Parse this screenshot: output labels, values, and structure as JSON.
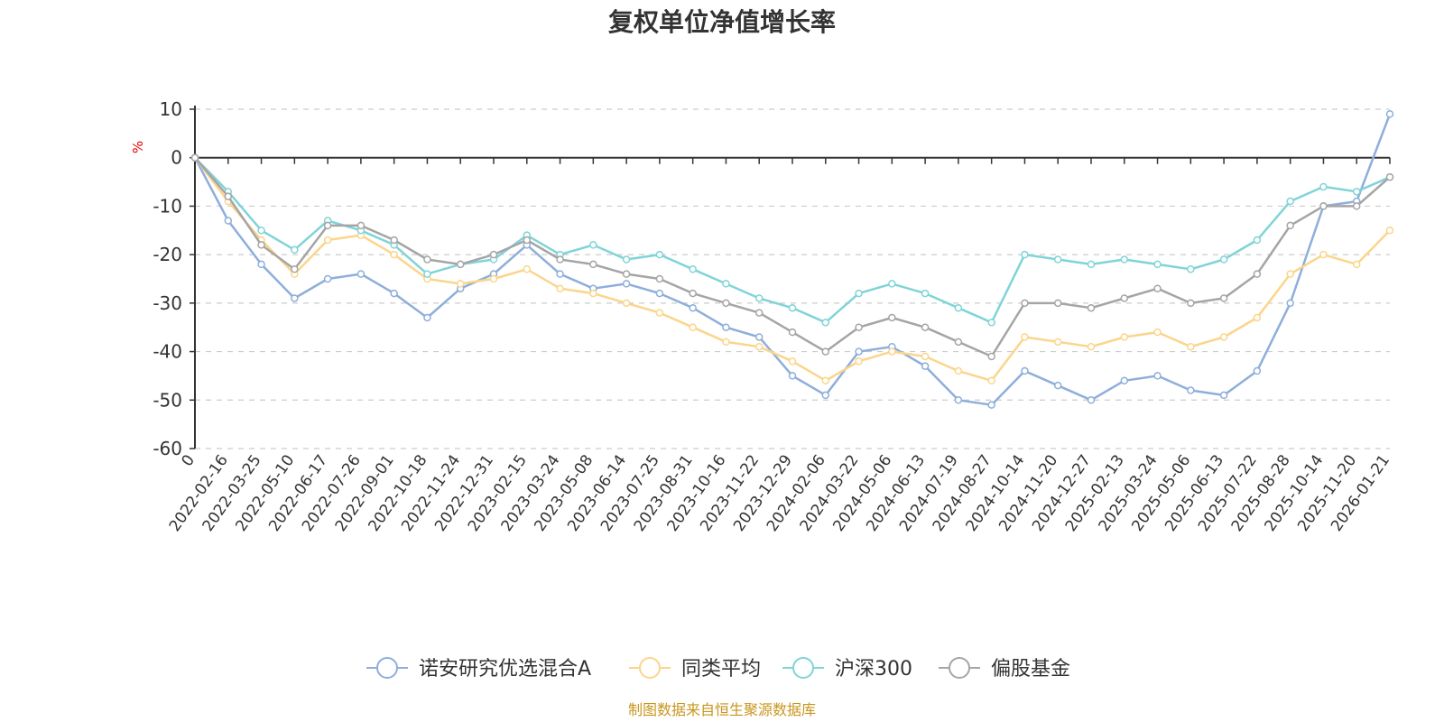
{
  "title": "复权单位净值增长率",
  "source": "制图数据来自恒生聚源数据库",
  "chart_data": {
    "type": "line",
    "title": "复权单位净值增长率",
    "ylabel": "%",
    "ylim": [
      -60,
      10
    ],
    "yticks": [
      10,
      0,
      -10,
      -20,
      -30,
      -40,
      -50,
      -60
    ],
    "grid": true,
    "legend_position": "bottom",
    "x": [
      "0",
      "2022-02-16",
      "2022-03-25",
      "2022-05-10",
      "2022-06-17",
      "2022-07-26",
      "2022-09-01",
      "2022-10-18",
      "2022-11-24",
      "2022-12-31",
      "2023-02-15",
      "2023-03-24",
      "2023-05-08",
      "2023-06-14",
      "2023-07-25",
      "2023-08-31",
      "2023-10-16",
      "2023-11-22",
      "2023-12-29",
      "2024-02-06",
      "2024-03-22",
      "2024-05-06",
      "2024-06-13",
      "2024-07-19",
      "2024-08-27",
      "2024-10-14",
      "2024-11-20",
      "2024-12-27",
      "2025-02-13",
      "2025-03-24",
      "2025-05-06",
      "2025-06-13",
      "2025-07-22",
      "2025-08-28",
      "2025-10-14",
      "2025-11-20",
      "2026-01-21"
    ],
    "series": [
      {
        "name": "诺安研究优选混合A",
        "color": "#8eaedb",
        "values": [
          0,
          -13,
          -22,
          -29,
          -25,
          -24,
          -28,
          -33,
          -27,
          -24,
          -18,
          -24,
          -27,
          -26,
          -28,
          -31,
          -35,
          -37,
          -45,
          -49,
          -40,
          -39,
          -43,
          -50,
          -51,
          -44,
          -47,
          -50,
          -46,
          -45,
          -48,
          -49,
          -44,
          -30,
          -10,
          -9,
          9
        ]
      },
      {
        "name": "同类平均",
        "color": "#fbd58a",
        "values": [
          0,
          -9,
          -17,
          -24,
          -17,
          -16,
          -20,
          -25,
          -26,
          -25,
          -23,
          -27,
          -28,
          -30,
          -32,
          -35,
          -38,
          -39,
          -42,
          -46,
          -42,
          -40,
          -41,
          -44,
          -46,
          -37,
          -38,
          -39,
          -37,
          -36,
          -39,
          -37,
          -33,
          -24,
          -20,
          -22,
          -15
        ]
      },
      {
        "name": "沪深300",
        "color": "#7fd4d8",
        "values": [
          0,
          -7,
          -15,
          -19,
          -13,
          -15,
          -18,
          -24,
          -22,
          -21,
          -16,
          -20,
          -18,
          -21,
          -20,
          -23,
          -26,
          -29,
          -31,
          -34,
          -28,
          -26,
          -28,
          -31,
          -34,
          -20,
          -21,
          -22,
          -21,
          -22,
          -23,
          -21,
          -17,
          -9,
          -6,
          -7,
          -4
        ]
      },
      {
        "name": "偏股基金",
        "color": "#a5a5a5",
        "values": [
          0,
          -8,
          -18,
          -23,
          -14,
          -14,
          -17,
          -21,
          -22,
          -20,
          -17,
          -21,
          -22,
          -24,
          -25,
          -28,
          -30,
          -32,
          -36,
          -40,
          -35,
          -33,
          -35,
          -38,
          -41,
          -30,
          -30,
          -31,
          -29,
          -27,
          -30,
          -29,
          -24,
          -14,
          -10,
          -10,
          -4
        ]
      }
    ]
  }
}
